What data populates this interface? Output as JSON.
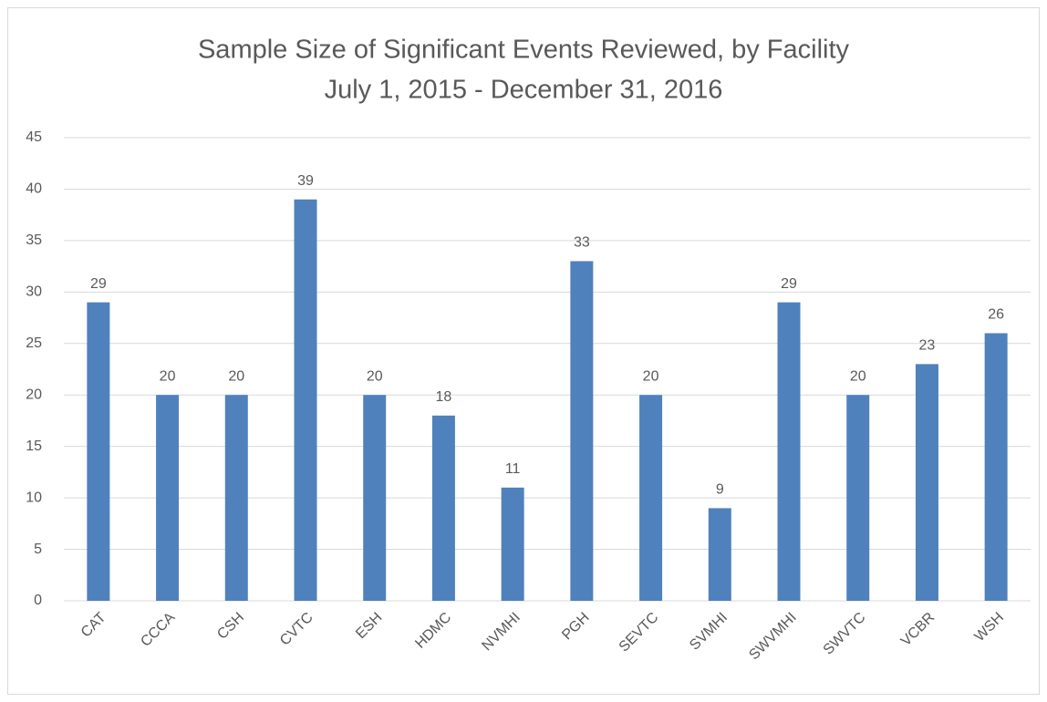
{
  "chart_data": {
    "type": "bar",
    "title": "Sample Size of Significant Events Reviewed, by Facility",
    "subtitle": "July 1, 2015 - December 31, 2016",
    "categories": [
      "CAT",
      "CCCA",
      "CSH",
      "CVTC",
      "ESH",
      "HDMC",
      "NVMHI",
      "PGH",
      "SEVTC",
      "SVMHI",
      "SWVMHI",
      "SWVTC",
      "VCBR",
      "WSH"
    ],
    "values": [
      29,
      20,
      20,
      39,
      20,
      18,
      11,
      33,
      20,
      9,
      29,
      20,
      23,
      26
    ],
    "color": "#4f81bd",
    "ylim": [
      0,
      45
    ],
    "yticks": [
      0,
      5,
      10,
      15,
      20,
      25,
      30,
      35,
      40,
      45
    ],
    "grid": true
  }
}
